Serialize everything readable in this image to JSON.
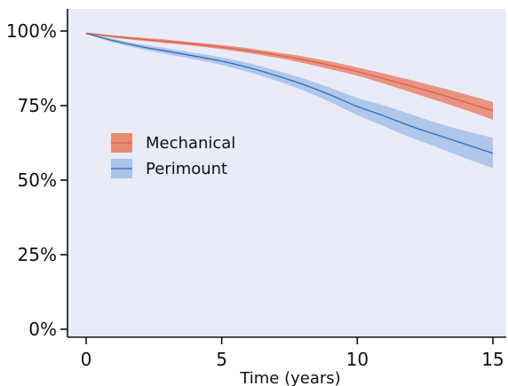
{
  "chart_data": {
    "type": "line",
    "title": "",
    "xlabel": "Time (years)",
    "ylabel": "",
    "xlim": [
      0,
      15
    ],
    "ylim": [
      0,
      100
    ],
    "x_ticks": [
      0,
      5,
      10,
      15
    ],
    "x_tick_labels": [
      "0",
      "5",
      "10",
      "15"
    ],
    "y_ticks": [
      0,
      25,
      50,
      75,
      100
    ],
    "y_tick_labels": [
      "0%",
      "25%",
      "50%",
      "75%",
      "100%"
    ],
    "grid": false,
    "legend_position": "center-left",
    "background_color": "#e9ecf7",
    "series": [
      {
        "name": "Mechanical",
        "color": "#d9604a",
        "band_color": "#ea8a73",
        "x": [
          0,
          1,
          2,
          3,
          4,
          5,
          6,
          7,
          8,
          9,
          10,
          11,
          12,
          13,
          14,
          15
        ],
        "y": [
          99.3,
          98.2,
          97.3,
          96.5,
          95.6,
          94.6,
          93.4,
          92.0,
          90.4,
          88.5,
          86.4,
          84.0,
          81.5,
          78.9,
          76.1,
          73.3
        ],
        "lower": [
          99.1,
          97.8,
          96.8,
          95.9,
          95.0,
          93.9,
          92.6,
          91.1,
          89.3,
          87.2,
          85.0,
          82.3,
          79.4,
          76.5,
          73.5,
          70.3
        ],
        "upper": [
          99.5,
          98.6,
          97.8,
          97.1,
          96.2,
          95.3,
          94.2,
          92.9,
          91.5,
          89.8,
          87.8,
          85.7,
          83.5,
          81.2,
          78.8,
          76.2
        ]
      },
      {
        "name": "Perimount",
        "color": "#2f6db3",
        "band_color": "#a9c3e9",
        "x": [
          0,
          1,
          2,
          3,
          4,
          5,
          6,
          7,
          8,
          9,
          10,
          11,
          12,
          13,
          14,
          15
        ],
        "y": [
          99.2,
          96.8,
          94.8,
          93.2,
          91.6,
          89.9,
          87.7,
          85.1,
          82.1,
          78.6,
          74.7,
          71.5,
          68.0,
          65.0,
          62.0,
          59.0
        ],
        "lower": [
          99.0,
          96.2,
          94.0,
          92.2,
          90.5,
          88.6,
          86.2,
          83.4,
          80.1,
          76.2,
          71.8,
          68.0,
          64.2,
          60.8,
          57.3,
          54.0
        ],
        "upper": [
          99.4,
          97.4,
          95.6,
          94.2,
          92.7,
          91.2,
          89.2,
          86.8,
          84.1,
          81.0,
          77.6,
          75.0,
          72.0,
          69.0,
          66.5,
          64.2
        ]
      }
    ]
  }
}
